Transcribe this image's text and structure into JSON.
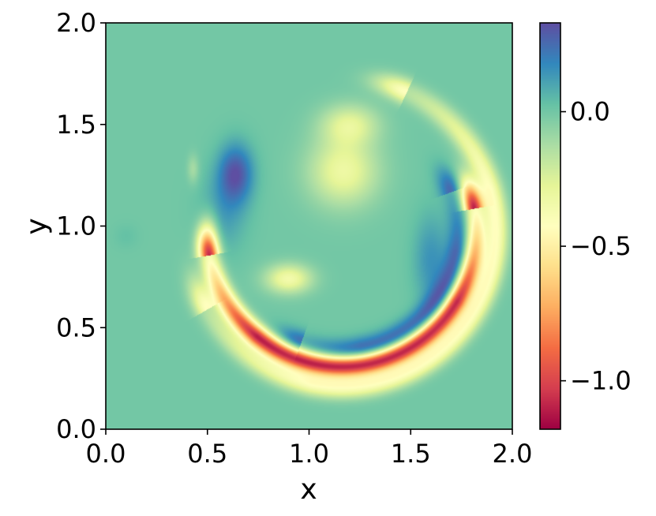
{
  "chart_data": {
    "type": "heatmap",
    "title": "",
    "xlabel": "x",
    "ylabel": "y",
    "xlim": [
      0.0,
      2.0
    ],
    "ylim": [
      0.0,
      2.0
    ],
    "x_ticks": [
      "0.0",
      "0.5",
      "1.0",
      "1.5",
      "2.0"
    ],
    "y_ticks": [
      "0.0",
      "0.5",
      "1.0",
      "1.5",
      "2.0"
    ],
    "colormap": "Spectral",
    "colorbar": {
      "range": [
        -1.18,
        0.33
      ],
      "ticks": [
        "0.0",
        "−0.5",
        "−1.0"
      ],
      "tick_values": [
        0.0,
        -0.5,
        -1.0
      ]
    },
    "background_value": 0.0,
    "features": [
      {
        "kind": "blob",
        "x": 0.64,
        "y": 1.26,
        "sx": 0.06,
        "sy": 0.1,
        "value": 0.3
      },
      {
        "kind": "blob",
        "x": 0.58,
        "y": 1.07,
        "sx": 0.08,
        "sy": 0.14,
        "value": 0.12
      },
      {
        "kind": "blob",
        "x": 1.17,
        "y": 1.27,
        "sx": 0.12,
        "sy": 0.12,
        "value": -0.32
      },
      {
        "kind": "blob",
        "x": 1.2,
        "y": 1.5,
        "sx": 0.1,
        "sy": 0.07,
        "value": -0.26
      },
      {
        "kind": "blob",
        "x": 0.9,
        "y": 0.74,
        "sx": 0.08,
        "sy": 0.05,
        "value": -0.35
      },
      {
        "kind": "blob",
        "x": 1.6,
        "y": 0.83,
        "sx": 0.06,
        "sy": 0.16,
        "value": 0.15
      },
      {
        "kind": "blob",
        "x": 0.43,
        "y": 1.28,
        "sx": 0.02,
        "sy": 0.05,
        "value": -0.12
      },
      {
        "kind": "blob",
        "x": 0.1,
        "y": 0.95,
        "sx": 0.04,
        "sy": 0.04,
        "value": 0.03
      },
      {
        "kind": "arc",
        "cx": 1.16,
        "cy": 0.97,
        "r": 0.66,
        "theta_from": -170,
        "theta_to": 10,
        "width": 0.035,
        "value": -1.1
      },
      {
        "kind": "arc",
        "cx": 1.16,
        "cy": 0.97,
        "r": 0.76,
        "theta_from": -150,
        "theta_to": 65,
        "width": 0.04,
        "value": -0.42
      },
      {
        "kind": "arc",
        "cx": 1.16,
        "cy": 0.97,
        "r": 0.58,
        "theta_from": -110,
        "theta_to": 20,
        "width": 0.04,
        "value": 0.28
      }
    ]
  }
}
